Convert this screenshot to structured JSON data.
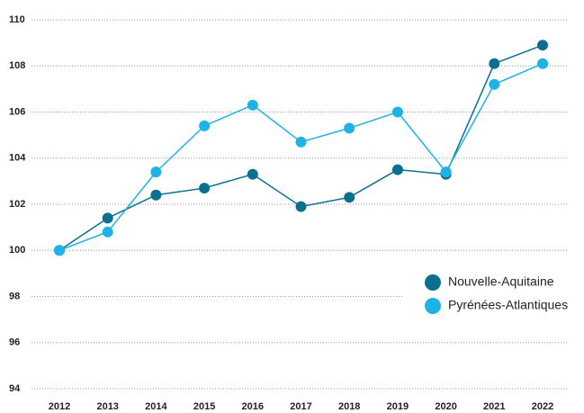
{
  "chart_data": {
    "type": "line",
    "categories": [
      "2012",
      "2013",
      "2014",
      "2015",
      "2016",
      "2017",
      "2018",
      "2019",
      "2020",
      "2021",
      "2022"
    ],
    "series": [
      {
        "name": "Nouvelle-Aquitaine",
        "color": "#0b6f8f",
        "values": [
          100,
          101.4,
          102.4,
          102.7,
          103.3,
          101.9,
          102.3,
          103.5,
          103.3,
          108.1,
          108.9
        ]
      },
      {
        "name": "Pyrénées-Atlantiques",
        "color": "#1db3e6",
        "values": [
          100,
          100.8,
          103.4,
          105.4,
          106.3,
          104.7,
          105.3,
          106.0,
          103.4,
          107.2,
          108.1
        ]
      }
    ],
    "ylim": [
      94,
      110
    ],
    "yticks": [
      94,
      96,
      98,
      100,
      102,
      104,
      106,
      108,
      110
    ],
    "grid": true,
    "legend": "lower right"
  }
}
